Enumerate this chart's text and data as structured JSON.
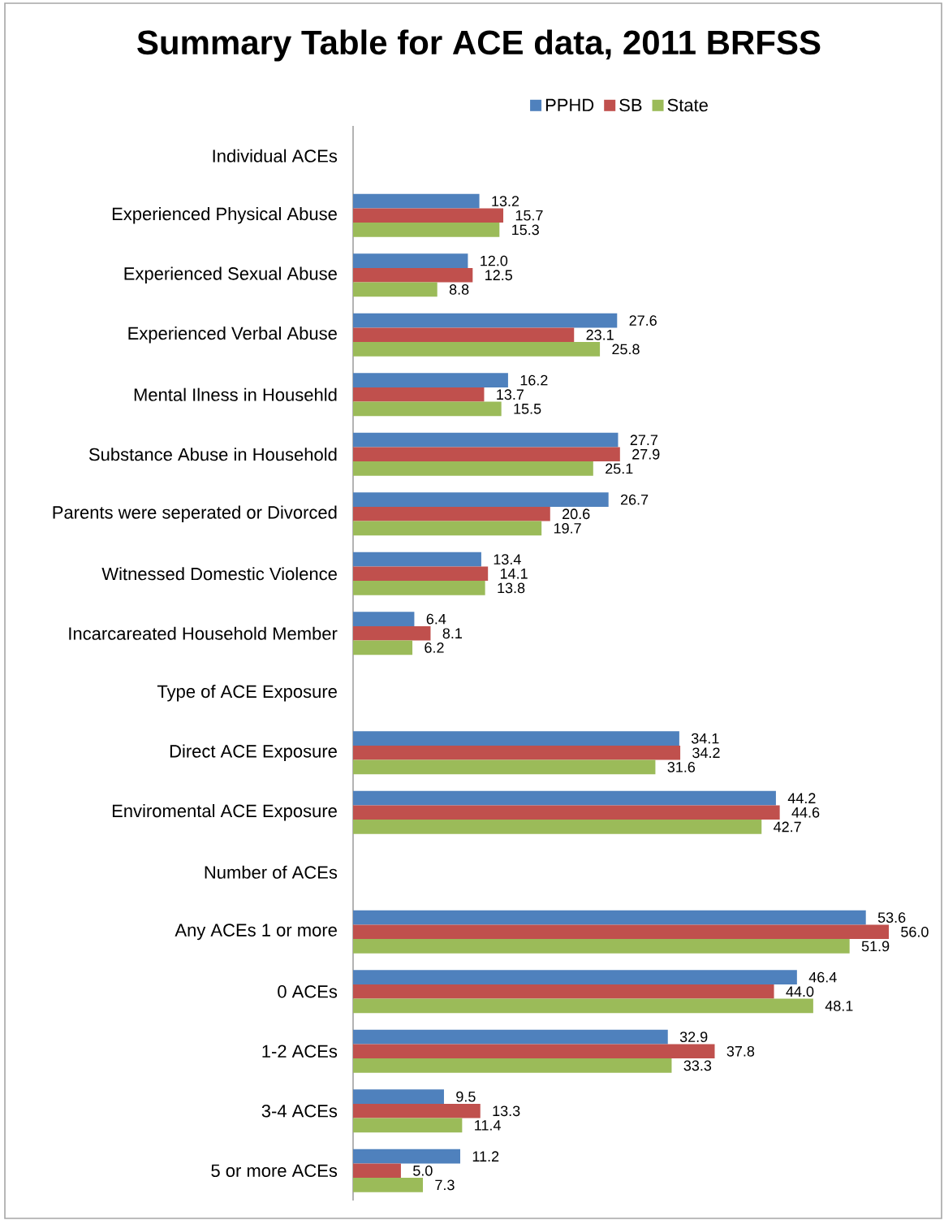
{
  "chart_data": {
    "type": "bar",
    "orientation": "horizontal",
    "title": "Summary Table for ACE data, 2011 BRFSS",
    "categories": [
      "Individual ACEs",
      "Experienced Physical Abuse",
      "Experienced Sexual Abuse",
      "Experienced Verbal Abuse",
      "Mental Ilness in Househld",
      "Substance Abuse in Household",
      "Parents were seperated or Divorced",
      "Witnessed Domestic Violence",
      "Incarcareated Household Member",
      "Type of ACE Exposure",
      "Direct ACE Exposure",
      "Enviromental ACE Exposure",
      "Number of ACEs",
      "Any ACEs 1 or more",
      "0 ACEs",
      "1-2 ACEs",
      "3-4 ACEs",
      "5 or more ACEs"
    ],
    "series": [
      {
        "name": "PPHD",
        "color": "#4f81bd",
        "values": [
          null,
          13.2,
          12.0,
          27.6,
          16.2,
          27.7,
          26.7,
          13.4,
          6.4,
          null,
          34.1,
          44.2,
          null,
          53.6,
          46.4,
          32.9,
          9.5,
          11.2
        ],
        "value_labels": [
          null,
          "13.2",
          "12.0",
          "27.6",
          "16.2",
          "27.7",
          "26.7",
          "13.4",
          "6.4",
          null,
          "34.1",
          "44.2",
          null,
          "53.6",
          "46.4",
          "32.9",
          "9.5",
          "11.2"
        ]
      },
      {
        "name": "SB",
        "color": "#c0504d",
        "values": [
          null,
          15.7,
          12.5,
          23.1,
          13.7,
          27.9,
          20.6,
          14.1,
          8.1,
          null,
          34.2,
          44.6,
          null,
          56.0,
          44.0,
          37.8,
          13.3,
          5.0
        ],
        "value_labels": [
          null,
          "15.7",
          "12.5",
          "23.1",
          "13.7",
          "27.9",
          "20.6",
          "14.1",
          "8.1",
          null,
          "34.2",
          "44.6",
          null,
          "56.0",
          "44.0",
          "37.8",
          "13.3",
          "5.0"
        ]
      },
      {
        "name": "State",
        "color": "#9bbb59",
        "values": [
          null,
          15.3,
          8.8,
          25.8,
          15.5,
          25.1,
          19.7,
          13.8,
          6.2,
          null,
          31.6,
          42.7,
          null,
          51.9,
          48.1,
          33.3,
          11.4,
          7.3
        ],
        "value_labels": [
          null,
          "15.3",
          "8.8",
          "25.8",
          "15.5",
          "25.1",
          "19.7",
          "13.8",
          "6.2",
          null,
          "31.6",
          "42.7",
          null,
          "51.9",
          "48.1",
          "33.3",
          "11.4",
          "7.3"
        ]
      }
    ],
    "legend": "top"
  }
}
